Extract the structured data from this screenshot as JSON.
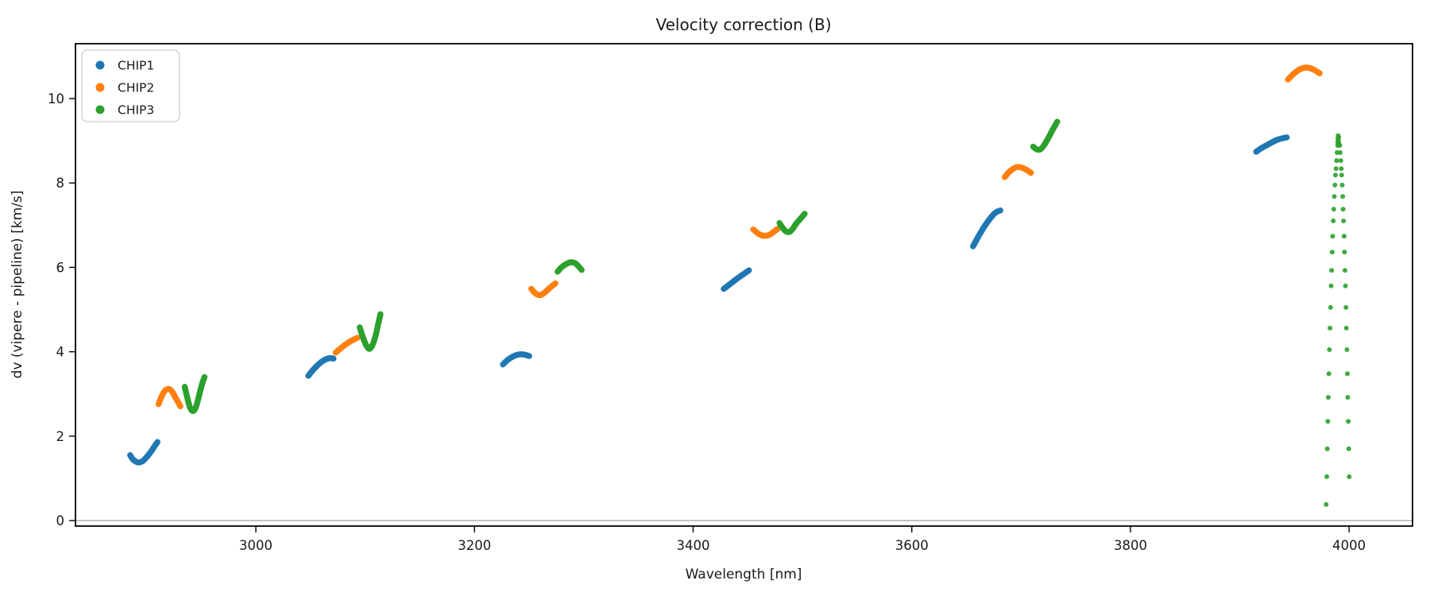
{
  "chart_data": {
    "type": "scatter",
    "title": "Velocity correction (B)",
    "xlabel": "Wavelength [nm]",
    "ylabel": "dv (vipere - pipeline) [km/s]",
    "xlim": [
      2835,
      4058
    ],
    "ylim": [
      -0.13,
      11.3
    ],
    "xticks": [
      3000,
      3200,
      3400,
      3600,
      3800,
      4000
    ],
    "yticks": [
      0,
      2,
      4,
      6,
      8,
      10
    ],
    "grid": false,
    "zero_line": {
      "y": 0,
      "color": "#b0b0b0"
    },
    "legend_position": "upper left",
    "series": [
      {
        "name": "CHIP1",
        "color": "#1f77b4",
        "segments": [
          [
            [
              2885,
              1.55
            ],
            [
              2888,
              1.44
            ],
            [
              2892,
              1.38
            ],
            [
              2896,
              1.4
            ],
            [
              2900,
              1.5
            ],
            [
              2904,
              1.63
            ],
            [
              2907,
              1.75
            ],
            [
              2910,
              1.86
            ]
          ],
          [
            [
              3048,
              3.43
            ],
            [
              3052,
              3.56
            ],
            [
              3056,
              3.67
            ],
            [
              3060,
              3.76
            ],
            [
              3064,
              3.82
            ],
            [
              3068,
              3.85
            ],
            [
              3071,
              3.84
            ]
          ],
          [
            [
              3226,
              3.7
            ],
            [
              3230,
              3.8
            ],
            [
              3234,
              3.87
            ],
            [
              3238,
              3.92
            ],
            [
              3242,
              3.94
            ],
            [
              3246,
              3.93
            ],
            [
              3250,
              3.9
            ]
          ],
          [
            [
              3428,
              5.49
            ],
            [
              3434,
              5.61
            ],
            [
              3440,
              5.73
            ],
            [
              3446,
              5.84
            ],
            [
              3451,
              5.93
            ]
          ],
          [
            [
              3656,
              6.5
            ],
            [
              3660,
              6.69
            ],
            [
              3664,
              6.87
            ],
            [
              3668,
              7.03
            ],
            [
              3672,
              7.17
            ],
            [
              3675,
              7.26
            ],
            [
              3678,
              7.32
            ],
            [
              3681,
              7.35
            ]
          ],
          [
            [
              3915,
              8.74
            ],
            [
              3920,
              8.83
            ],
            [
              3925,
              8.9
            ],
            [
              3930,
              8.97
            ],
            [
              3935,
              9.03
            ],
            [
              3939,
              9.06
            ],
            [
              3943,
              9.08
            ]
          ]
        ]
      },
      {
        "name": "CHIP2",
        "color": "#ff7f0e",
        "segments": [
          [
            [
              2911,
              2.76
            ],
            [
              2914,
              2.95
            ],
            [
              2917,
              3.08
            ],
            [
              2920,
              3.12
            ],
            [
              2923,
              3.07
            ],
            [
              2926,
              2.94
            ],
            [
              2929,
              2.8
            ],
            [
              2931,
              2.71
            ]
          ],
          [
            [
              3073,
              3.98
            ],
            [
              3078,
              4.09
            ],
            [
              3083,
              4.19
            ],
            [
              3088,
              4.27
            ],
            [
              3093,
              4.33
            ]
          ],
          [
            [
              3252,
              5.49
            ],
            [
              3255,
              5.4
            ],
            [
              3258,
              5.35
            ],
            [
              3261,
              5.35
            ],
            [
              3264,
              5.4
            ],
            [
              3267,
              5.47
            ],
            [
              3270,
              5.54
            ],
            [
              3274,
              5.62
            ]
          ],
          [
            [
              3455,
              6.9
            ],
            [
              3459,
              6.81
            ],
            [
              3463,
              6.76
            ],
            [
              3467,
              6.75
            ],
            [
              3471,
              6.79
            ],
            [
              3474,
              6.85
            ],
            [
              3477,
              6.91
            ]
          ],
          [
            [
              3685,
              8.14
            ],
            [
              3689,
              8.26
            ],
            [
              3693,
              8.34
            ],
            [
              3697,
              8.38
            ],
            [
              3701,
              8.36
            ],
            [
              3705,
              8.31
            ],
            [
              3709,
              8.24
            ]
          ],
          [
            [
              3944,
              10.45
            ],
            [
              3949,
              10.58
            ],
            [
              3954,
              10.68
            ],
            [
              3959,
              10.73
            ],
            [
              3963,
              10.73
            ],
            [
              3968,
              10.68
            ],
            [
              3973,
              10.6
            ]
          ]
        ]
      },
      {
        "name": "CHIP3",
        "color": "#2ca02c",
        "segments": [
          [
            [
              2935,
              3.17
            ],
            [
              2937,
              2.94
            ],
            [
              2939,
              2.74
            ],
            [
              2941,
              2.62
            ],
            [
              2943,
              2.6
            ],
            [
              2945,
              2.68
            ],
            [
              2947,
              2.85
            ],
            [
              2949,
              3.06
            ],
            [
              2951,
              3.25
            ],
            [
              2953,
              3.4
            ]
          ],
          [
            [
              3095,
              4.58
            ],
            [
              3098,
              4.34
            ],
            [
              3101,
              4.15
            ],
            [
              3104,
              4.07
            ],
            [
              3107,
              4.18
            ],
            [
              3110,
              4.43
            ],
            [
              3112,
              4.67
            ],
            [
              3114,
              4.89
            ]
          ],
          [
            [
              3276,
              5.9
            ],
            [
              3280,
              6.01
            ],
            [
              3284,
              6.08
            ],
            [
              3288,
              6.12
            ],
            [
              3292,
              6.1
            ],
            [
              3295,
              6.03
            ],
            [
              3298,
              5.94
            ]
          ],
          [
            [
              3479,
              7.05
            ],
            [
              3482,
              6.93
            ],
            [
              3485,
              6.85
            ],
            [
              3488,
              6.84
            ],
            [
              3491,
              6.91
            ],
            [
              3494,
              7.03
            ],
            [
              3498,
              7.15
            ],
            [
              3502,
              7.27
            ]
          ],
          [
            [
              3711,
              8.86
            ],
            [
              3714,
              8.8
            ],
            [
              3717,
              8.79
            ],
            [
              3720,
              8.86
            ],
            [
              3723,
              8.98
            ],
            [
              3726,
              9.12
            ],
            [
              3729,
              9.27
            ],
            [
              3733,
              9.45
            ]
          ]
        ],
        "dots": [
          [
            3990.0,
            9.12
          ],
          [
            3990.5,
            9.09
          ],
          [
            3989.7,
            9.05
          ],
          [
            3990.3,
            9.01
          ],
          [
            3990.0,
            8.96
          ],
          [
            3990.7,
            8.93
          ],
          [
            3989.6,
            8.97
          ],
          [
            3989.5,
            8.89
          ],
          [
            3991.5,
            8.89
          ],
          [
            3989.0,
            8.72
          ],
          [
            3991.9,
            8.72
          ],
          [
            3988.5,
            8.53
          ],
          [
            3992.4,
            8.53
          ],
          [
            3988.0,
            8.34
          ],
          [
            3992.8,
            8.34
          ],
          [
            3987.5,
            8.19
          ],
          [
            3993.2,
            8.19
          ],
          [
            3987.0,
            7.95
          ],
          [
            3993.7,
            7.95
          ],
          [
            3986.5,
            7.68
          ],
          [
            3994.1,
            7.68
          ],
          [
            3986.0,
            7.38
          ],
          [
            3994.5,
            7.38
          ],
          [
            3985.5,
            7.1
          ],
          [
            3994.9,
            7.1
          ],
          [
            3985.0,
            6.74
          ],
          [
            3995.4,
            6.74
          ],
          [
            3984.5,
            6.36
          ],
          [
            3995.8,
            6.36
          ],
          [
            3984.0,
            5.93
          ],
          [
            3996.2,
            5.93
          ],
          [
            3983.5,
            5.56
          ],
          [
            3996.7,
            5.56
          ],
          [
            3983.0,
            5.05
          ],
          [
            3997.1,
            5.05
          ],
          [
            3982.5,
            4.56
          ],
          [
            3997.5,
            4.56
          ],
          [
            3982.0,
            4.05
          ],
          [
            3998.0,
            4.05
          ],
          [
            3981.5,
            3.48
          ],
          [
            3998.4,
            3.48
          ],
          [
            3981.0,
            2.92
          ],
          [
            3998.8,
            2.92
          ],
          [
            3980.5,
            2.35
          ],
          [
            3999.2,
            2.35
          ],
          [
            3980.0,
            1.7
          ],
          [
            3999.7,
            1.7
          ],
          [
            3979.5,
            1.04
          ],
          [
            4000.1,
            1.04
          ],
          [
            3979.0,
            0.38
          ]
        ]
      }
    ]
  },
  "legend": {
    "items": [
      {
        "label": "CHIP1",
        "color": "#1f77b4"
      },
      {
        "label": "CHIP2",
        "color": "#ff7f0e"
      },
      {
        "label": "CHIP3",
        "color": "#2ca02c"
      }
    ]
  },
  "style": {
    "spine_color": "#000000",
    "text_color": "#1a1a1a",
    "legend_border": "#cccccc",
    "background": "#ffffff"
  }
}
